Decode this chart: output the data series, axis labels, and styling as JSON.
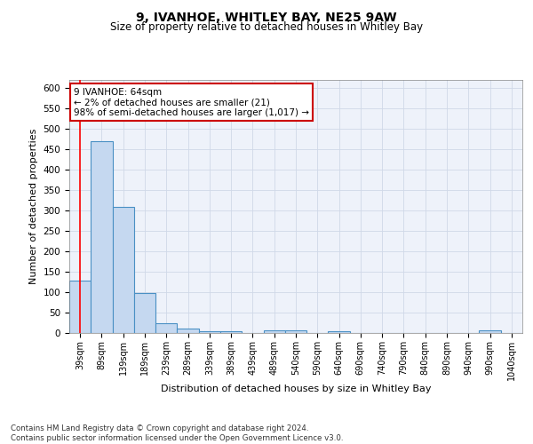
{
  "title": "9, IVANHOE, WHITLEY BAY, NE25 9AW",
  "subtitle": "Size of property relative to detached houses in Whitley Bay",
  "xlabel": "Distribution of detached houses by size in Whitley Bay",
  "ylabel": "Number of detached properties",
  "bin_labels": [
    "39sqm",
    "89sqm",
    "139sqm",
    "189sqm",
    "239sqm",
    "289sqm",
    "339sqm",
    "389sqm",
    "439sqm",
    "489sqm",
    "540sqm",
    "590sqm",
    "640sqm",
    "690sqm",
    "740sqm",
    "790sqm",
    "840sqm",
    "890sqm",
    "940sqm",
    "990sqm",
    "1040sqm"
  ],
  "bar_heights": [
    128,
    470,
    310,
    97,
    25,
    10,
    5,
    5,
    0,
    7,
    7,
    0,
    5,
    0,
    0,
    0,
    0,
    0,
    0,
    6,
    0
  ],
  "bar_color": "#c5d8f0",
  "bar_edge_color": "#4a90c4",
  "annotation_text": "9 IVANHOE: 64sqm\n← 2% of detached houses are smaller (21)\n98% of semi-detached houses are larger (1,017) →",
  "annotation_box_color": "#ffffff",
  "annotation_box_edge": "#cc0000",
  "ylim": [
    0,
    620
  ],
  "yticks": [
    0,
    50,
    100,
    150,
    200,
    250,
    300,
    350,
    400,
    450,
    500,
    550,
    600
  ],
  "grid_color": "#d0d8e8",
  "background_color": "#eef2fa",
  "footer": "Contains HM Land Registry data © Crown copyright and database right 2024.\nContains public sector information licensed under the Open Government Licence v3.0.",
  "title_fontsize": 10,
  "subtitle_fontsize": 8.5,
  "xlabel_fontsize": 8,
  "ylabel_fontsize": 8
}
